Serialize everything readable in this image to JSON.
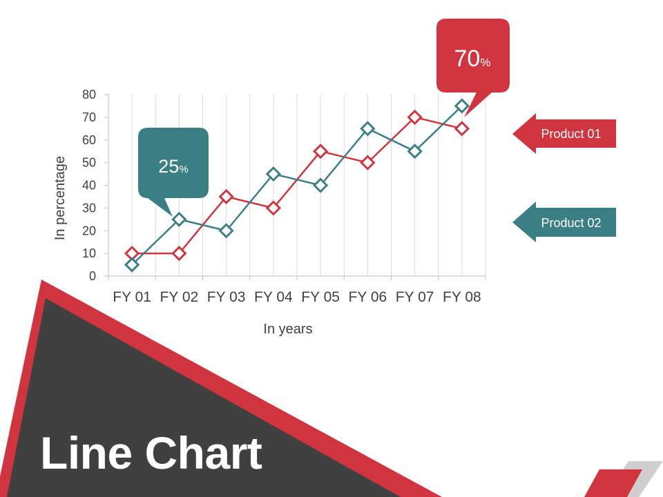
{
  "colors": {
    "product01": "#d0343f",
    "product02": "#3a7f84",
    "dark_panel": "#404040",
    "grid": "#d9d9d9",
    "axis": "#bfbfbf"
  },
  "slide": {
    "title": "Line Chart"
  },
  "callouts": {
    "product01_value": "70",
    "product02_value": "25",
    "unit": "%"
  },
  "legend": {
    "product01": "Product 01",
    "product02": "Product 02"
  },
  "chart_data": {
    "type": "line",
    "categories": [
      "FY 01",
      "FY 02",
      "FY 03",
      "FY 04",
      "FY 05",
      "FY 06",
      "FY 07",
      "FY 08"
    ],
    "series": [
      {
        "name": "Product 01",
        "values": [
          10,
          10,
          35,
          30,
          55,
          50,
          70,
          65
        ]
      },
      {
        "name": "Product 02",
        "values": [
          5,
          25,
          20,
          45,
          40,
          65,
          55,
          75
        ]
      }
    ],
    "xlabel": "In years",
    "ylabel": "In percentage",
    "ylim": [
      0,
      80
    ],
    "yticks": [
      0,
      10,
      20,
      30,
      40,
      50,
      60,
      70,
      80
    ],
    "grid": "vertical",
    "marker": "diamond",
    "legend_position": "right"
  }
}
